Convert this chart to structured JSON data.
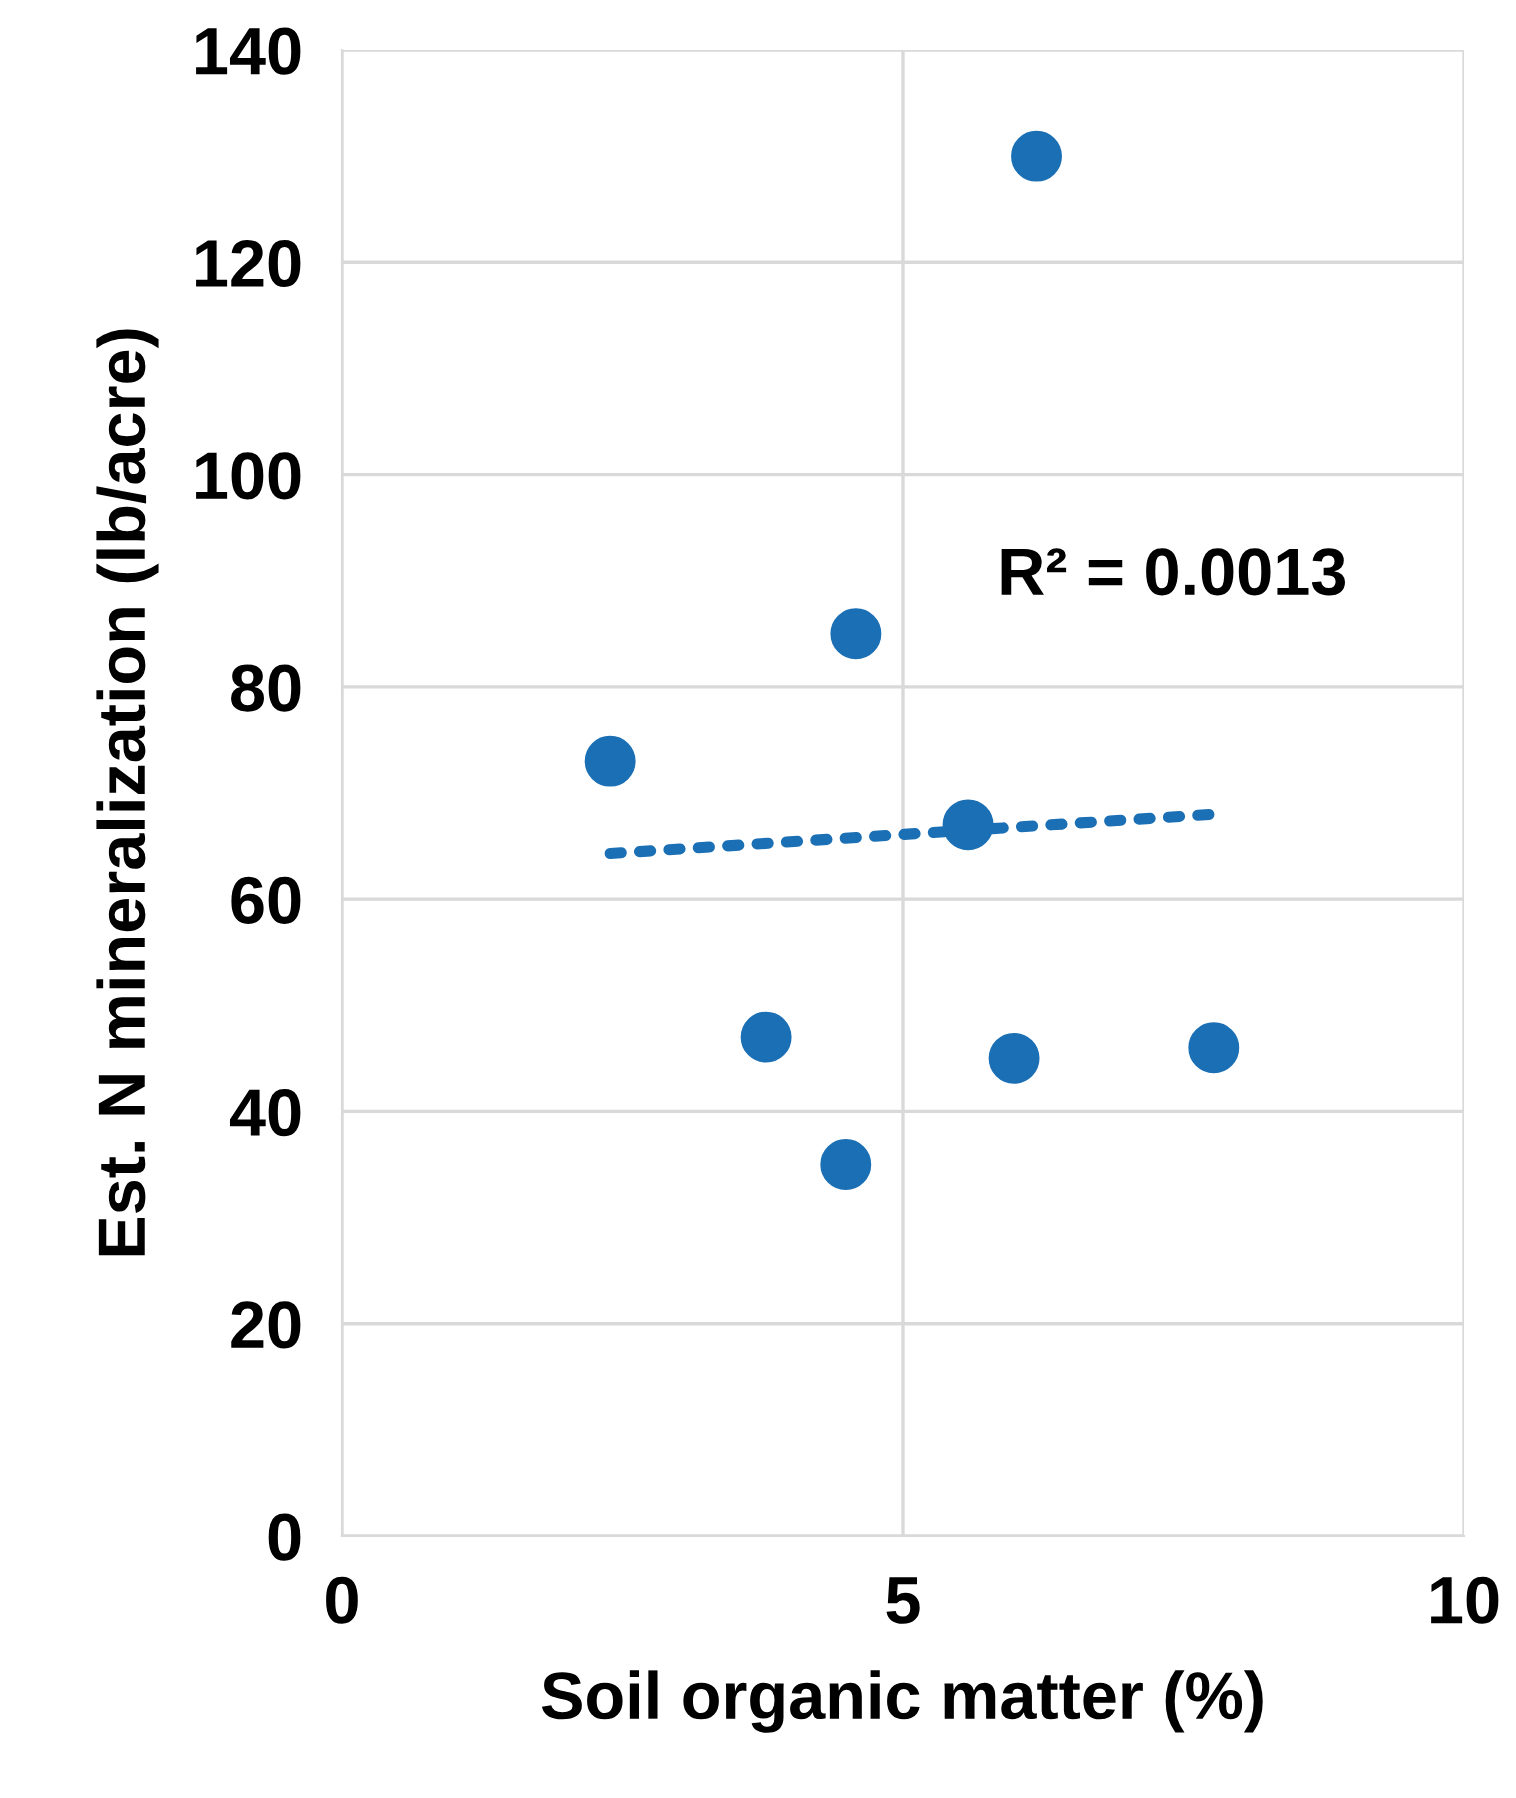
{
  "chart_data": {
    "type": "scatter",
    "xlabel": "Soil organic matter (%)",
    "ylabel": "Est. N mineralization (lb/acre)",
    "xlim": [
      0,
      10
    ],
    "xticks": [
      0,
      5,
      10
    ],
    "ylim": [
      0,
      140
    ],
    "yticks": [
      0,
      20,
      40,
      60,
      80,
      100,
      120,
      140
    ],
    "grid": true,
    "legend": false,
    "series": [
      {
        "marker": "circle",
        "color": "#1b6fb4",
        "x": [
          6.19,
          4.58,
          2.39,
          5.58,
          3.78,
          5.99,
          7.77,
          4.49
        ],
        "values": [
          130,
          85,
          73,
          67,
          47,
          45,
          46,
          35
        ]
      },
      {
        "type": "line",
        "marker": "none",
        "line_style": "dotted",
        "color": "#1b6fb4",
        "x": [
          2.39,
          7.77
        ],
        "values": [
          64.3,
          68.0
        ]
      }
    ],
    "annotations": [
      "R² = 0.0013"
    ]
  }
}
